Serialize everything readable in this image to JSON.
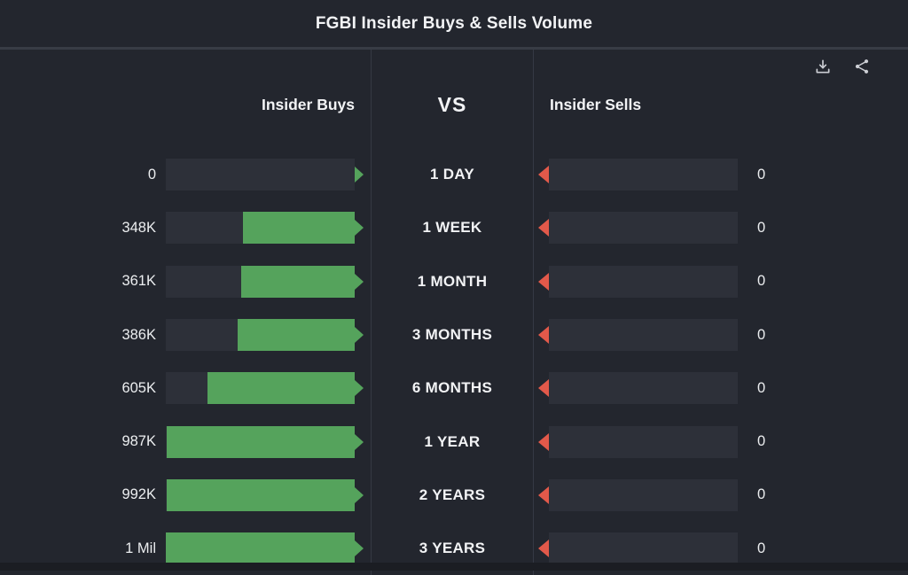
{
  "header": {
    "title": "FGBI Insider Buys & Sells Volume"
  },
  "toolbar": {
    "download_icon": "download-icon",
    "share_icon": "share-icon"
  },
  "columns": {
    "buys_header": "Insider Buys",
    "vs_label": "VS",
    "sells_header": "Insider Sells"
  },
  "colors": {
    "background": "#23262e",
    "track": "#2d3039",
    "buy_green": "#55a35c",
    "sell_red": "#e2594a"
  },
  "chart_data": {
    "type": "bar",
    "title": "FGBI Insider Buys & Sells Volume",
    "categories": [
      "1 DAY",
      "1 WEEK",
      "1 MONTH",
      "3 MONTHS",
      "6 MONTHS",
      "1 YEAR",
      "2 YEARS",
      "3 YEARS"
    ],
    "series": [
      {
        "name": "Insider Buys",
        "values": [
          0,
          348000,
          361000,
          386000,
          605000,
          987000,
          992000,
          1000000
        ],
        "labels": [
          "0",
          "348K",
          "361K",
          "386K",
          "605K",
          "987K",
          "992K",
          "1 Mil"
        ],
        "direction": "right-anchored",
        "color": "#55a35c"
      },
      {
        "name": "Insider Sells",
        "values": [
          0,
          0,
          0,
          0,
          0,
          0,
          0,
          0
        ],
        "labels": [
          "0",
          "0",
          "0",
          "0",
          "0",
          "0",
          "0",
          "0"
        ],
        "direction": "left-anchored",
        "color": "#e2594a"
      }
    ],
    "scale": "sqrt",
    "max": 1000000,
    "legend_position": "column-headers",
    "grid": false
  }
}
